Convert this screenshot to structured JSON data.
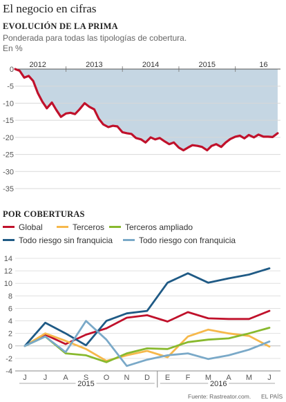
{
  "header": {
    "title": "El negocio en cifras"
  },
  "section1": {
    "title": "EVOLUCIÓN DE LA PRIMA",
    "subtitle": "Ponderada para todas las tipologías de cobertura.",
    "unit": "En %"
  },
  "section2": {
    "title": "POR COBERTURAS"
  },
  "footer": {
    "source": "Fuente: Rastreator.com.",
    "brand": "EL PAÍS"
  },
  "chart_data": [
    {
      "type": "area",
      "title": "EVOLUCIÓN DE LA PRIMA",
      "subtitle": "Ponderada para todas las tipologías de cobertura.",
      "ylabel": "En %",
      "ylim": [
        -35,
        0
      ],
      "yticks": [
        0,
        -5,
        -10,
        -15,
        -20,
        -25,
        -30,
        -35
      ],
      "xlim": [
        2011.6,
        2016.3
      ],
      "year_labels": [
        {
          "label": "2012",
          "x": 2012.0
        },
        {
          "label": "2013",
          "x": 2013.0
        },
        {
          "label": "2014",
          "x": 2014.0
        },
        {
          "label": "2015",
          "x": 2015.0
        },
        {
          "label": "16",
          "x": 2016.0
        }
      ],
      "year_separators": [
        2012.5,
        2013.5,
        2014.5,
        2015.5
      ],
      "grid": true,
      "colors": {
        "line": "#c0112b",
        "fill": "#c5d6e3",
        "grid": "#d8d8d8"
      },
      "series": [
        {
          "points": [
            [
              2011.6,
              0.0
            ],
            [
              2011.68,
              -0.5
            ],
            [
              2011.76,
              -2.5
            ],
            [
              2011.84,
              -2.0
            ],
            [
              2011.92,
              -3.5
            ],
            [
              2012.0,
              -7.0
            ],
            [
              2012.08,
              -9.5
            ],
            [
              2012.16,
              -11.5
            ],
            [
              2012.25,
              -9.8
            ],
            [
              2012.33,
              -12.0
            ],
            [
              2012.41,
              -14.0
            ],
            [
              2012.5,
              -13.0
            ],
            [
              2012.58,
              -12.8
            ],
            [
              2012.66,
              -13.2
            ],
            [
              2012.74,
              -11.8
            ],
            [
              2012.83,
              -10.0
            ],
            [
              2012.91,
              -11.0
            ],
            [
              2013.0,
              -11.8
            ],
            [
              2013.08,
              -14.5
            ],
            [
              2013.16,
              -16.2
            ],
            [
              2013.25,
              -17.0
            ],
            [
              2013.33,
              -16.6
            ],
            [
              2013.41,
              -16.8
            ],
            [
              2013.5,
              -18.5
            ],
            [
              2013.58,
              -18.8
            ],
            [
              2013.66,
              -19.0
            ],
            [
              2013.74,
              -20.2
            ],
            [
              2013.83,
              -20.6
            ],
            [
              2013.91,
              -21.5
            ],
            [
              2014.0,
              -20.0
            ],
            [
              2014.08,
              -20.6
            ],
            [
              2014.16,
              -20.2
            ],
            [
              2014.25,
              -21.2
            ],
            [
              2014.33,
              -22.0
            ],
            [
              2014.41,
              -21.5
            ],
            [
              2014.5,
              -23.0
            ],
            [
              2014.58,
              -23.8
            ],
            [
              2014.66,
              -23.0
            ],
            [
              2014.74,
              -22.3
            ],
            [
              2014.83,
              -22.5
            ],
            [
              2014.91,
              -22.8
            ],
            [
              2015.0,
              -23.8
            ],
            [
              2015.08,
              -22.5
            ],
            [
              2015.16,
              -22.0
            ],
            [
              2015.25,
              -22.8
            ],
            [
              2015.33,
              -21.5
            ],
            [
              2015.41,
              -20.5
            ],
            [
              2015.5,
              -19.8
            ],
            [
              2015.58,
              -19.5
            ],
            [
              2015.66,
              -20.3
            ],
            [
              2015.74,
              -19.3
            ],
            [
              2015.83,
              -20.0
            ],
            [
              2015.91,
              -19.2
            ],
            [
              2016.0,
              -19.8
            ],
            [
              2016.08,
              -19.8
            ],
            [
              2016.16,
              -19.9
            ],
            [
              2016.25,
              -18.8
            ]
          ]
        }
      ]
    },
    {
      "type": "line",
      "title": "POR COBERTURAS",
      "categories": [
        "J",
        "J",
        "A",
        "S",
        "O",
        "N",
        "D",
        "E",
        "F",
        "M",
        "A",
        "M",
        "J"
      ],
      "year_groups": [
        {
          "label": "2015",
          "from": 0,
          "to": 6
        },
        {
          "label": "2016",
          "from": 7,
          "to": 12
        }
      ],
      "ylim": [
        -4,
        14
      ],
      "yticks": [
        14,
        12,
        10,
        8,
        6,
        4,
        2,
        0,
        -2,
        -4
      ],
      "grid": true,
      "legend_position": "top",
      "series": [
        {
          "name": "Global",
          "color": "#c0112b",
          "points": [
            [
              0,
              0
            ],
            [
              1,
              1.8
            ],
            [
              2,
              0.3
            ],
            [
              3,
              1.8
            ],
            [
              4,
              2.8
            ],
            [
              5,
              4.5
            ],
            [
              6,
              4.9
            ],
            [
              7,
              3.9
            ],
            [
              8,
              5.4
            ],
            [
              9,
              4.4
            ],
            [
              10,
              4.3
            ],
            [
              11,
              4.3
            ],
            [
              12,
              5.6
            ]
          ]
        },
        {
          "name": "Terceros",
          "color": "#f6b84b",
          "points": [
            [
              0,
              0
            ],
            [
              1,
              2.0
            ],
            [
              2,
              0.8
            ],
            [
              3,
              -0.5
            ],
            [
              4,
              -2.4
            ],
            [
              5,
              -1.5
            ],
            [
              6,
              -0.8
            ],
            [
              7,
              -1.8
            ],
            [
              8,
              1.5
            ],
            [
              9,
              2.6
            ],
            [
              10,
              2.0
            ],
            [
              11,
              1.6
            ],
            [
              12,
              -0.1
            ]
          ]
        },
        {
          "name": "Terceros ampliado",
          "color": "#88b92e",
          "points": [
            [
              0,
              0
            ],
            [
              1,
              1.5
            ],
            [
              2,
              -1.2
            ],
            [
              3,
              -1.5
            ],
            [
              4,
              -2.6
            ],
            [
              5,
              -1.2
            ],
            [
              6,
              -0.4
            ],
            [
              7,
              -0.5
            ],
            [
              8,
              0.6
            ],
            [
              9,
              1.0
            ],
            [
              10,
              1.2
            ],
            [
              11,
              2.0
            ],
            [
              12,
              2.9
            ]
          ]
        },
        {
          "name": "Todo riesgo sin franquicia",
          "color": "#1f5a85",
          "points": [
            [
              0,
              0
            ],
            [
              1,
              3.7
            ],
            [
              2,
              2.0
            ],
            [
              3,
              0.1
            ],
            [
              4,
              4.0
            ],
            [
              5,
              5.2
            ],
            [
              6,
              5.6
            ],
            [
              7,
              10.1
            ],
            [
              8,
              11.6
            ],
            [
              9,
              10.1
            ],
            [
              10,
              10.8
            ],
            [
              11,
              11.4
            ],
            [
              12,
              12.4
            ]
          ]
        },
        {
          "name": "Todo riesgo con franquicia",
          "color": "#7aa9c8",
          "points": [
            [
              0,
              0
            ],
            [
              1,
              1.5
            ],
            [
              2,
              -1.0
            ],
            [
              3,
              4.0
            ],
            [
              4,
              1.0
            ],
            [
              5,
              -3.2
            ],
            [
              6,
              -2.2
            ],
            [
              7,
              -1.5
            ],
            [
              8,
              -1.2
            ],
            [
              9,
              -2.1
            ],
            [
              10,
              -1.5
            ],
            [
              11,
              -0.6
            ],
            [
              12,
              0.7
            ]
          ]
        }
      ]
    }
  ]
}
